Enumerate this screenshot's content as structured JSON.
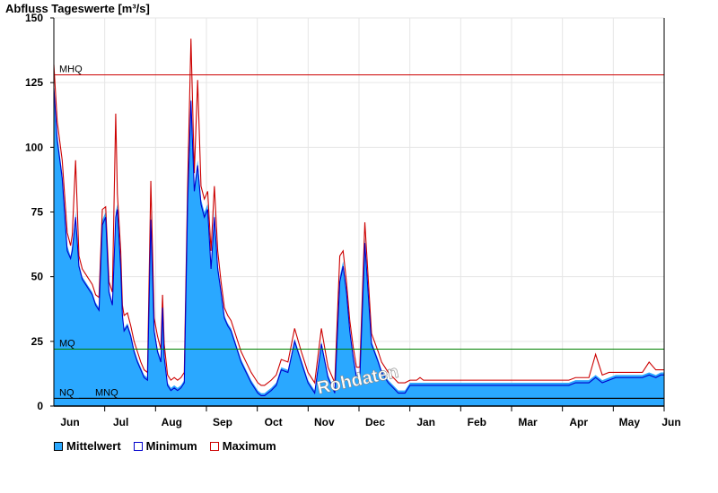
{
  "chart_data": {
    "type": "area",
    "title": "Abfluss Tageswerte [m³/s]",
    "ylim": [
      0,
      150
    ],
    "yticks": [
      0,
      25,
      50,
      75,
      100,
      125,
      150
    ],
    "x_day_range": [
      0,
      365
    ],
    "month_labels": [
      "Jun",
      "Jul",
      "Aug",
      "Sep",
      "Oct",
      "Nov",
      "Dec",
      "Jan",
      "Feb",
      "Mar",
      "Apr",
      "May",
      "Jun"
    ],
    "reference_lines": [
      {
        "label": "MHQ",
        "value": 128,
        "color": "#cc0000"
      },
      {
        "label": "MQ",
        "value": 22,
        "color": "#008000"
      },
      {
        "label": "NQ",
        "value": 3,
        "color": "#000000"
      }
    ],
    "mnq_label": "MNQ",
    "watermark": "Rohdaten",
    "colors": {
      "fill": "#2aa8ff",
      "minimum": "#0000cc",
      "maximum": "#cc0000"
    },
    "legend": [
      "Mittelwert",
      "Minimum",
      "Maximum"
    ],
    "series": [
      {
        "name": "Mittelwert",
        "x": [
          0,
          2,
          5,
          8,
          10,
          11,
          13,
          15,
          17,
          19,
          21,
          23,
          25,
          27,
          29,
          31,
          33,
          35,
          37,
          38,
          40,
          41,
          42,
          44,
          46,
          48,
          50,
          52,
          54,
          56,
          58,
          60,
          62,
          64,
          65,
          66,
          68,
          70,
          72,
          74,
          76,
          78,
          80,
          82,
          84,
          86,
          88,
          90,
          92,
          94,
          96,
          98,
          100,
          102,
          104,
          106,
          108,
          110,
          112,
          115,
          118,
          120,
          122,
          124,
          126,
          128,
          130,
          133,
          136,
          140,
          144,
          148,
          152,
          156,
          160,
          164,
          168,
          171,
          173,
          175,
          177,
          179,
          181,
          183,
          186,
          190,
          194,
          196,
          198,
          200,
          203,
          206,
          210,
          213,
          215,
          217,
          219,
          221,
          224,
          226,
          228,
          232,
          236,
          240,
          244,
          248,
          252,
          256,
          260,
          264,
          268,
          272,
          276,
          280,
          284,
          288,
          292,
          296,
          300,
          304,
          308,
          312,
          316,
          320,
          324,
          328,
          332,
          336,
          340,
          344,
          348,
          352,
          356,
          360,
          363,
          365
        ],
        "values": [
          125,
          105,
          90,
          62,
          58,
          62,
          75,
          55,
          50,
          48,
          46,
          44,
          40,
          38,
          72,
          75,
          45,
          40,
          75,
          78,
          55,
          36,
          30,
          32,
          28,
          22,
          18,
          15,
          12,
          11,
          75,
          30,
          22,
          18,
          40,
          20,
          9,
          7,
          8,
          7,
          8,
          10,
          80,
          120,
          85,
          95,
          80,
          75,
          78,
          55,
          75,
          55,
          45,
          35,
          32,
          30,
          26,
          22,
          18,
          14,
          10,
          8,
          6,
          5,
          5,
          6,
          7,
          9,
          15,
          14,
          26,
          18,
          10,
          6,
          25,
          12,
          6,
          50,
          56,
          45,
          30,
          20,
          12,
          12,
          65,
          25,
          18,
          14,
          12,
          10,
          8,
          6,
          6,
          9,
          9,
          9,
          9,
          9,
          9,
          9,
          9,
          9,
          9,
          9,
          9,
          9,
          9,
          9,
          9,
          9,
          9,
          9,
          9,
          9,
          9,
          9,
          9,
          9,
          9,
          9,
          9,
          10,
          10,
          10,
          12,
          10,
          11,
          12,
          12,
          12,
          12,
          12,
          13,
          12,
          13,
          13
        ]
      },
      {
        "name": "Minimum",
        "x": [
          0,
          2,
          5,
          8,
          10,
          11,
          13,
          15,
          17,
          19,
          21,
          23,
          25,
          27,
          29,
          31,
          33,
          35,
          37,
          38,
          40,
          41,
          42,
          44,
          46,
          48,
          50,
          52,
          54,
          56,
          58,
          60,
          62,
          64,
          65,
          66,
          68,
          70,
          72,
          74,
          76,
          78,
          80,
          82,
          84,
          86,
          88,
          90,
          92,
          94,
          96,
          98,
          100,
          102,
          104,
          106,
          108,
          110,
          112,
          115,
          118,
          120,
          122,
          124,
          126,
          128,
          130,
          133,
          136,
          140,
          144,
          148,
          152,
          156,
          160,
          164,
          168,
          171,
          173,
          175,
          177,
          179,
          181,
          183,
          186,
          190,
          194,
          196,
          198,
          200,
          203,
          206,
          210,
          213,
          215,
          217,
          219,
          221,
          224,
          226,
          228,
          232,
          236,
          240,
          244,
          248,
          252,
          256,
          260,
          264,
          268,
          272,
          276,
          280,
          284,
          288,
          292,
          296,
          300,
          304,
          308,
          312,
          316,
          320,
          324,
          328,
          332,
          336,
          340,
          344,
          348,
          352,
          356,
          360,
          363,
          365
        ],
        "values": [
          123,
          103,
          88,
          60,
          57,
          60,
          73,
          54,
          49,
          47,
          45,
          43,
          39,
          37,
          70,
          73,
          44,
          39,
          73,
          76,
          53,
          35,
          29,
          31,
          27,
          21,
          17,
          14,
          11,
          10,
          72,
          29,
          21,
          17,
          38,
          19,
          8,
          6,
          7,
          6,
          7,
          9,
          78,
          118,
          83,
          93,
          78,
          73,
          76,
          53,
          73,
          53,
          44,
          34,
          31,
          29,
          25,
          21,
          17,
          13,
          9,
          7,
          5,
          4,
          4,
          5,
          6,
          8,
          14,
          13,
          25,
          17,
          9,
          5,
          24,
          11,
          5,
          48,
          54,
          44,
          29,
          19,
          11,
          11,
          63,
          24,
          17,
          13,
          11,
          9,
          7,
          5,
          5,
          8,
          8,
          8,
          8,
          8,
          8,
          8,
          8,
          8,
          8,
          8,
          8,
          8,
          8,
          8,
          8,
          8,
          8,
          8,
          8,
          8,
          8,
          8,
          8,
          8,
          8,
          8,
          8,
          9,
          9,
          9,
          11,
          9,
          10,
          11,
          11,
          11,
          11,
          11,
          12,
          11,
          12,
          12
        ]
      },
      {
        "name": "Maximum",
        "x": [
          0,
          2,
          5,
          8,
          10,
          11,
          13,
          15,
          17,
          19,
          21,
          23,
          25,
          27,
          29,
          31,
          33,
          35,
          37,
          38,
          40,
          41,
          42,
          44,
          46,
          48,
          50,
          52,
          54,
          56,
          58,
          60,
          62,
          64,
          65,
          66,
          68,
          70,
          72,
          74,
          76,
          78,
          80,
          82,
          84,
          86,
          88,
          90,
          92,
          94,
          96,
          98,
          100,
          102,
          104,
          106,
          108,
          110,
          112,
          115,
          118,
          120,
          122,
          124,
          126,
          128,
          130,
          133,
          136,
          140,
          144,
          148,
          152,
          156,
          160,
          164,
          168,
          171,
          173,
          175,
          177,
          179,
          181,
          183,
          186,
          190,
          194,
          196,
          198,
          200,
          203,
          206,
          210,
          213,
          215,
          217,
          219,
          221,
          224,
          226,
          228,
          232,
          236,
          240,
          244,
          248,
          252,
          256,
          260,
          264,
          268,
          272,
          276,
          280,
          284,
          288,
          292,
          296,
          300,
          304,
          308,
          312,
          316,
          320,
          324,
          328,
          332,
          336,
          340,
          344,
          348,
          352,
          356,
          360,
          363,
          365
        ],
        "values": [
          132,
          110,
          95,
          67,
          62,
          66,
          95,
          58,
          53,
          51,
          49,
          47,
          43,
          42,
          76,
          77,
          48,
          44,
          113,
          82,
          60,
          39,
          35,
          36,
          31,
          25,
          21,
          17,
          14,
          13,
          87,
          34,
          27,
          22,
          43,
          24,
          12,
          10,
          11,
          10,
          11,
          13,
          85,
          142,
          90,
          126,
          85,
          80,
          83,
          60,
          85,
          60,
          48,
          38,
          35,
          33,
          29,
          25,
          21,
          17,
          13,
          11,
          9,
          8,
          8,
          9,
          10,
          12,
          18,
          17,
          30,
          21,
          13,
          9,
          30,
          15,
          9,
          58,
          60,
          48,
          33,
          23,
          15,
          15,
          71,
          28,
          21,
          17,
          15,
          13,
          11,
          9,
          9,
          10,
          10,
          10,
          11,
          10,
          10,
          10,
          10,
          10,
          10,
          10,
          10,
          10,
          10,
          10,
          10,
          10,
          10,
          10,
          10,
          10,
          10,
          10,
          10,
          10,
          10,
          10,
          10,
          11,
          11,
          11,
          20,
          12,
          13,
          13,
          13,
          13,
          13,
          13,
          17,
          14,
          14,
          14
        ]
      }
    ]
  }
}
